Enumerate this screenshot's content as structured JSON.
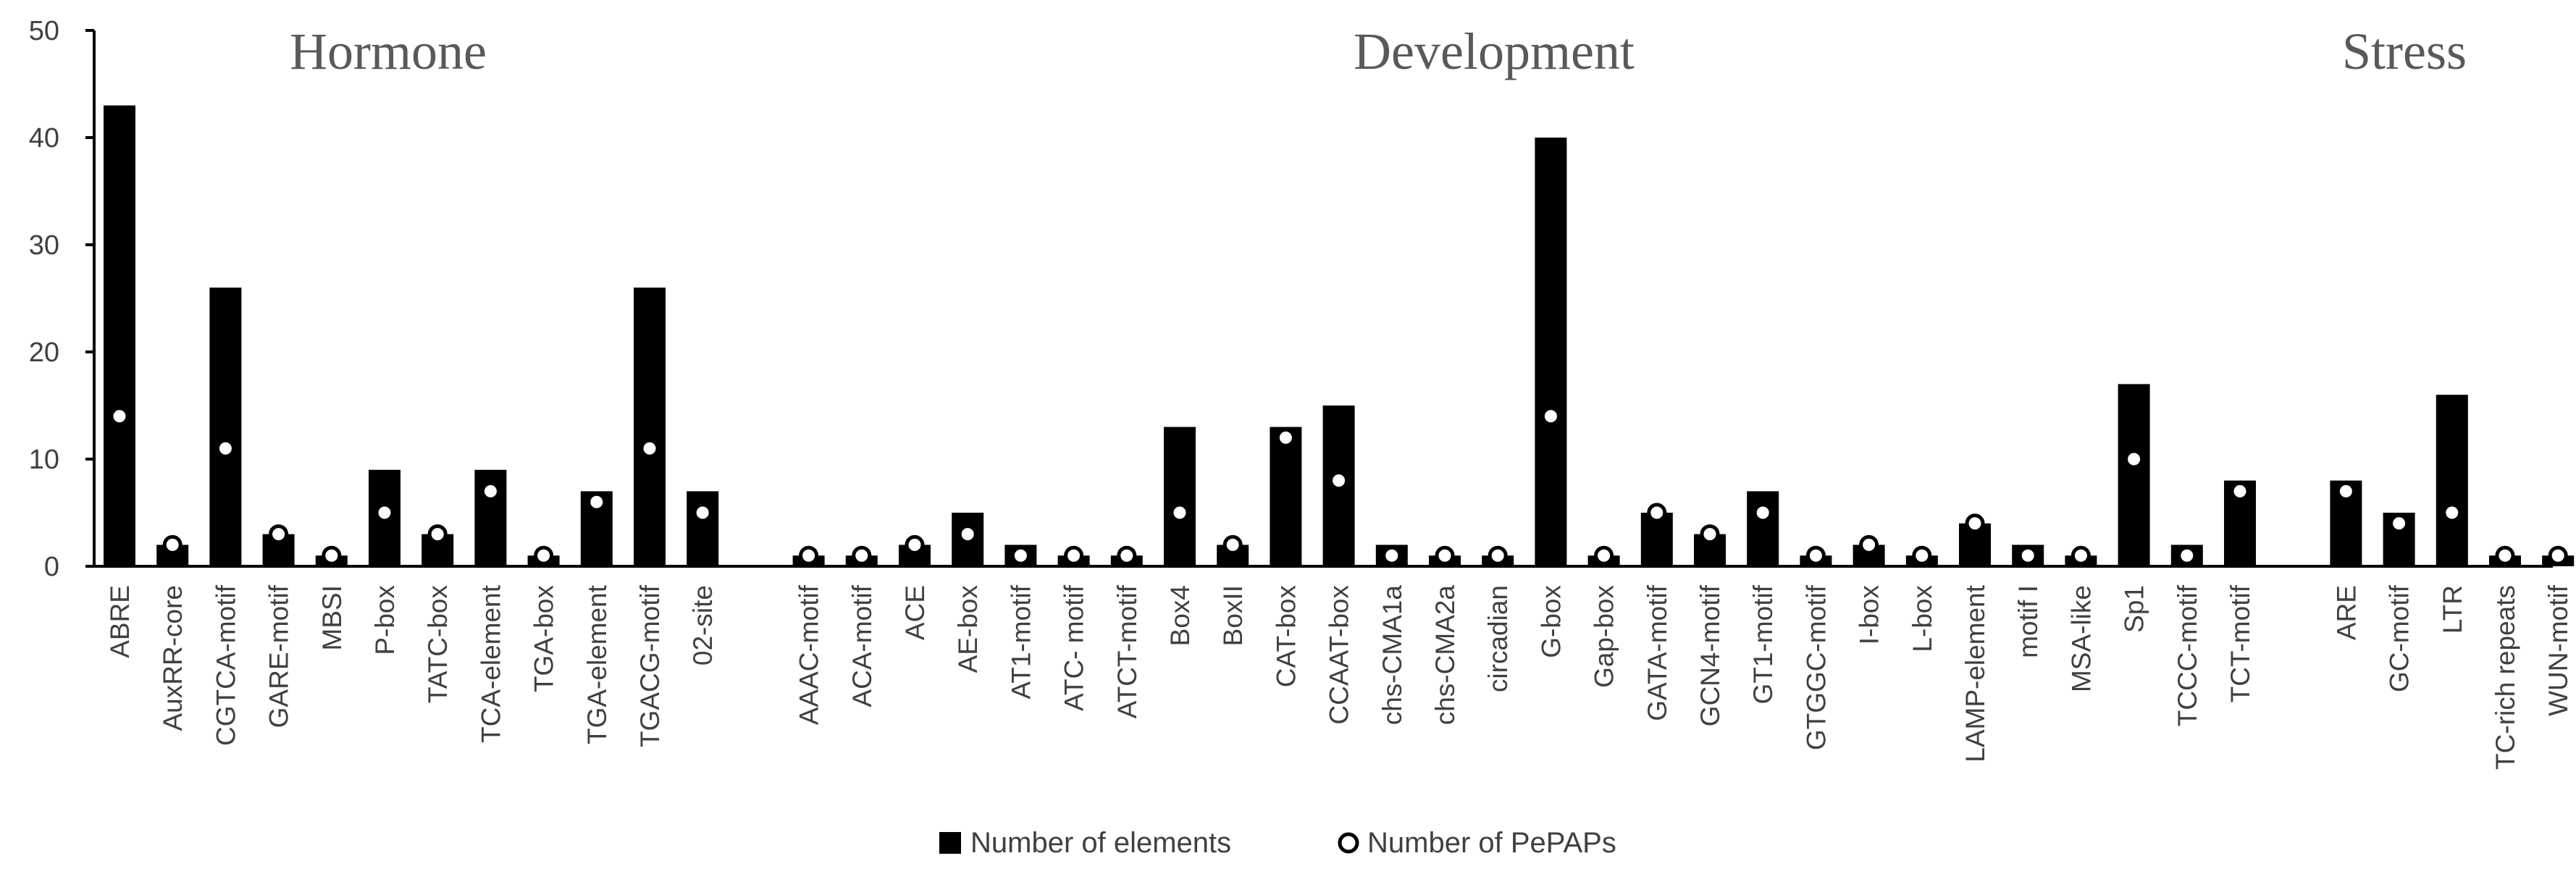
{
  "chart_data": {
    "type": "bar",
    "title": "",
    "xlabel": "",
    "ylabel": "",
    "ylim": [
      0,
      50
    ],
    "yticks": [
      0,
      10,
      20,
      30,
      40,
      50
    ],
    "groups": [
      {
        "name": "Hormone",
        "categories": [
          "ABRE",
          "AuxRR-core",
          "CGTCA-motif",
          "GARE-motif",
          "MBSI",
          "P-box",
          "TATC-box",
          "TCA-element",
          "TGA-box",
          "TGA-element",
          "TGACG-motif",
          "02-site"
        ],
        "elements": [
          43,
          2,
          26,
          3,
          1,
          9,
          3,
          9,
          1,
          7,
          26,
          7
        ],
        "pepaps": [
          14,
          2,
          11,
          3,
          1,
          5,
          3,
          7,
          1,
          6,
          11,
          5
        ]
      },
      {
        "name": "Development",
        "categories": [
          "AAAC-motif",
          "ACA-motif",
          "ACE",
          "AE-box",
          "AT1-motif",
          "ATC- motif",
          "ATCT-motif",
          "Box4",
          "BoxII",
          "CAT-box",
          "CCAAT-box",
          "chs-CMA1a",
          "chs-CMA2a",
          "circadian",
          "G-box",
          "Gap-box",
          "GATA-motif",
          "GCN4-motif",
          "GT1-motif",
          "GTGGC-motif",
          "I-box",
          "L-box",
          "LAMP-element",
          "motif I",
          "MSA-like",
          "Sp1",
          "TCCC-motif",
          "TCT-motif"
        ],
        "elements": [
          1,
          1,
          2,
          5,
          2,
          1,
          1,
          13,
          2,
          13,
          15,
          2,
          1,
          1,
          40,
          1,
          5,
          3,
          7,
          1,
          2,
          1,
          4,
          2,
          1,
          17,
          2,
          8
        ],
        "pepaps": [
          1,
          1,
          2,
          3,
          1,
          1,
          1,
          5,
          2,
          12,
          8,
          1,
          1,
          1,
          14,
          1,
          5,
          3,
          5,
          1,
          2,
          1,
          4,
          1,
          1,
          10,
          1,
          7
        ]
      },
      {
        "name": "Stress",
        "categories": [
          "ARE",
          "GC-motif",
          "LTR",
          "TC-rich repeats",
          "WUN-motif"
        ],
        "elements": [
          8,
          5,
          16,
          1,
          1
        ],
        "pepaps": [
          7,
          4,
          5,
          1,
          1
        ]
      }
    ],
    "series": [
      {
        "name": "Number of elements",
        "marker": "bar",
        "color": "#000000"
      },
      {
        "name": "Number of PePAPs",
        "marker": "circle",
        "color": "#ffffff"
      }
    ],
    "legend_position": "bottom-center",
    "grid": false
  }
}
